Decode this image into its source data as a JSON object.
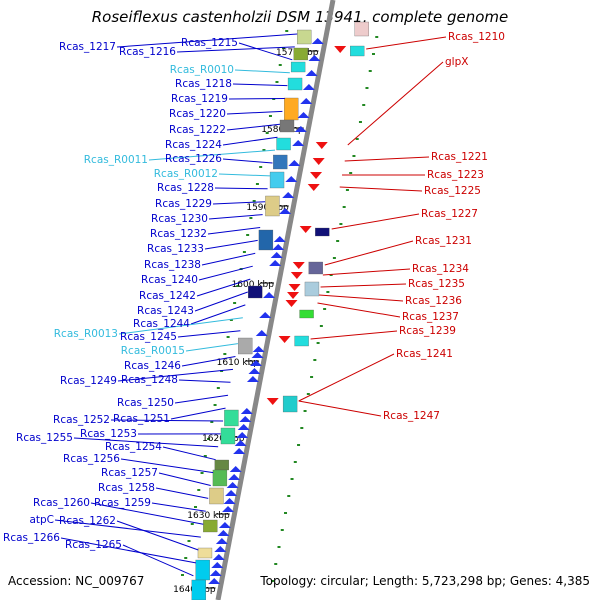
{
  "title": "Roseiflexus castenholzii DSM 13941, complete genome",
  "footer": {
    "accession": "Accession: NC_009767",
    "summary": "Topology: circular; Length: 5,723,298 bp; Genes: 4,385"
  },
  "colors": {
    "left_label": "#0000cc",
    "rna_label": "#33bbdd",
    "right_label": "#cc0000",
    "backbone": "#888888",
    "tick": "#228822"
  },
  "kbp_marks": [
    "1570 kbp",
    "1580 kbp",
    "1590 kbp",
    "1600 kbp",
    "1610 kbp",
    "1620 kbp",
    "1630 kbp",
    "1640 kbp"
  ],
  "left_labels": [
    {
      "text": "Rcas_1217",
      "kind": "gene"
    },
    {
      "text": "Rcas_1216",
      "kind": "gene"
    },
    {
      "text": "Rcas_1215",
      "kind": "gene"
    },
    {
      "text": "Rcas_R0010",
      "kind": "rna"
    },
    {
      "text": "Rcas_1218",
      "kind": "gene"
    },
    {
      "text": "Rcas_1219",
      "kind": "gene"
    },
    {
      "text": "Rcas_1220",
      "kind": "gene"
    },
    {
      "text": "Rcas_1222",
      "kind": "gene"
    },
    {
      "text": "Rcas_1224",
      "kind": "gene"
    },
    {
      "text": "Rcas_R0011",
      "kind": "rna"
    },
    {
      "text": "Rcas_1226",
      "kind": "gene"
    },
    {
      "text": "Rcas_R0012",
      "kind": "rna"
    },
    {
      "text": "Rcas_1228",
      "kind": "gene"
    },
    {
      "text": "Rcas_1229",
      "kind": "gene"
    },
    {
      "text": "Rcas_1230",
      "kind": "gene"
    },
    {
      "text": "Rcas_1232",
      "kind": "gene"
    },
    {
      "text": "Rcas_1233",
      "kind": "gene"
    },
    {
      "text": "Rcas_1238",
      "kind": "gene"
    },
    {
      "text": "Rcas_1240",
      "kind": "gene"
    },
    {
      "text": "Rcas_1242",
      "kind": "gene"
    },
    {
      "text": "Rcas_1243",
      "kind": "gene"
    },
    {
      "text": "Rcas_1244",
      "kind": "gene"
    },
    {
      "text": "Rcas_R0013",
      "kind": "rna"
    },
    {
      "text": "Rcas_1245",
      "kind": "gene"
    },
    {
      "text": "Rcas_R0015",
      "kind": "rna"
    },
    {
      "text": "Rcas_1246",
      "kind": "gene"
    },
    {
      "text": "Rcas_1249",
      "kind": "gene"
    },
    {
      "text": "Rcas_1248",
      "kind": "gene"
    },
    {
      "text": "Rcas_1250",
      "kind": "gene"
    },
    {
      "text": "Rcas_1251",
      "kind": "gene"
    },
    {
      "text": "Rcas_1252",
      "kind": "gene"
    },
    {
      "text": "Rcas_1253",
      "kind": "gene"
    },
    {
      "text": "Rcas_1255",
      "kind": "gene"
    },
    {
      "text": "Rcas_1254",
      "kind": "gene"
    },
    {
      "text": "Rcas_1256",
      "kind": "gene"
    },
    {
      "text": "Rcas_1257",
      "kind": "gene"
    },
    {
      "text": "Rcas_1258",
      "kind": "gene"
    },
    {
      "text": "Rcas_1259",
      "kind": "gene"
    },
    {
      "text": "Rcas_1260",
      "kind": "gene"
    },
    {
      "text": "atpC",
      "kind": "gene"
    },
    {
      "text": "Rcas_1262",
      "kind": "gene"
    },
    {
      "text": "Rcas_1266",
      "kind": "gene"
    },
    {
      "text": "Rcas_1265",
      "kind": "gene"
    }
  ],
  "right_labels": [
    {
      "text": "Rcas_1210"
    },
    {
      "text": "glpX"
    },
    {
      "text": "Rcas_1221"
    },
    {
      "text": "Rcas_1223"
    },
    {
      "text": "Rcas_1225"
    },
    {
      "text": "Rcas_1227"
    },
    {
      "text": "Rcas_1231"
    },
    {
      "text": "Rcas_1234"
    },
    {
      "text": "Rcas_1235"
    },
    {
      "text": "Rcas_1236"
    },
    {
      "text": "Rcas_1237"
    },
    {
      "text": "Rcas_1239"
    },
    {
      "text": "Rcas_1241"
    },
    {
      "text": "Rcas_1247"
    }
  ]
}
